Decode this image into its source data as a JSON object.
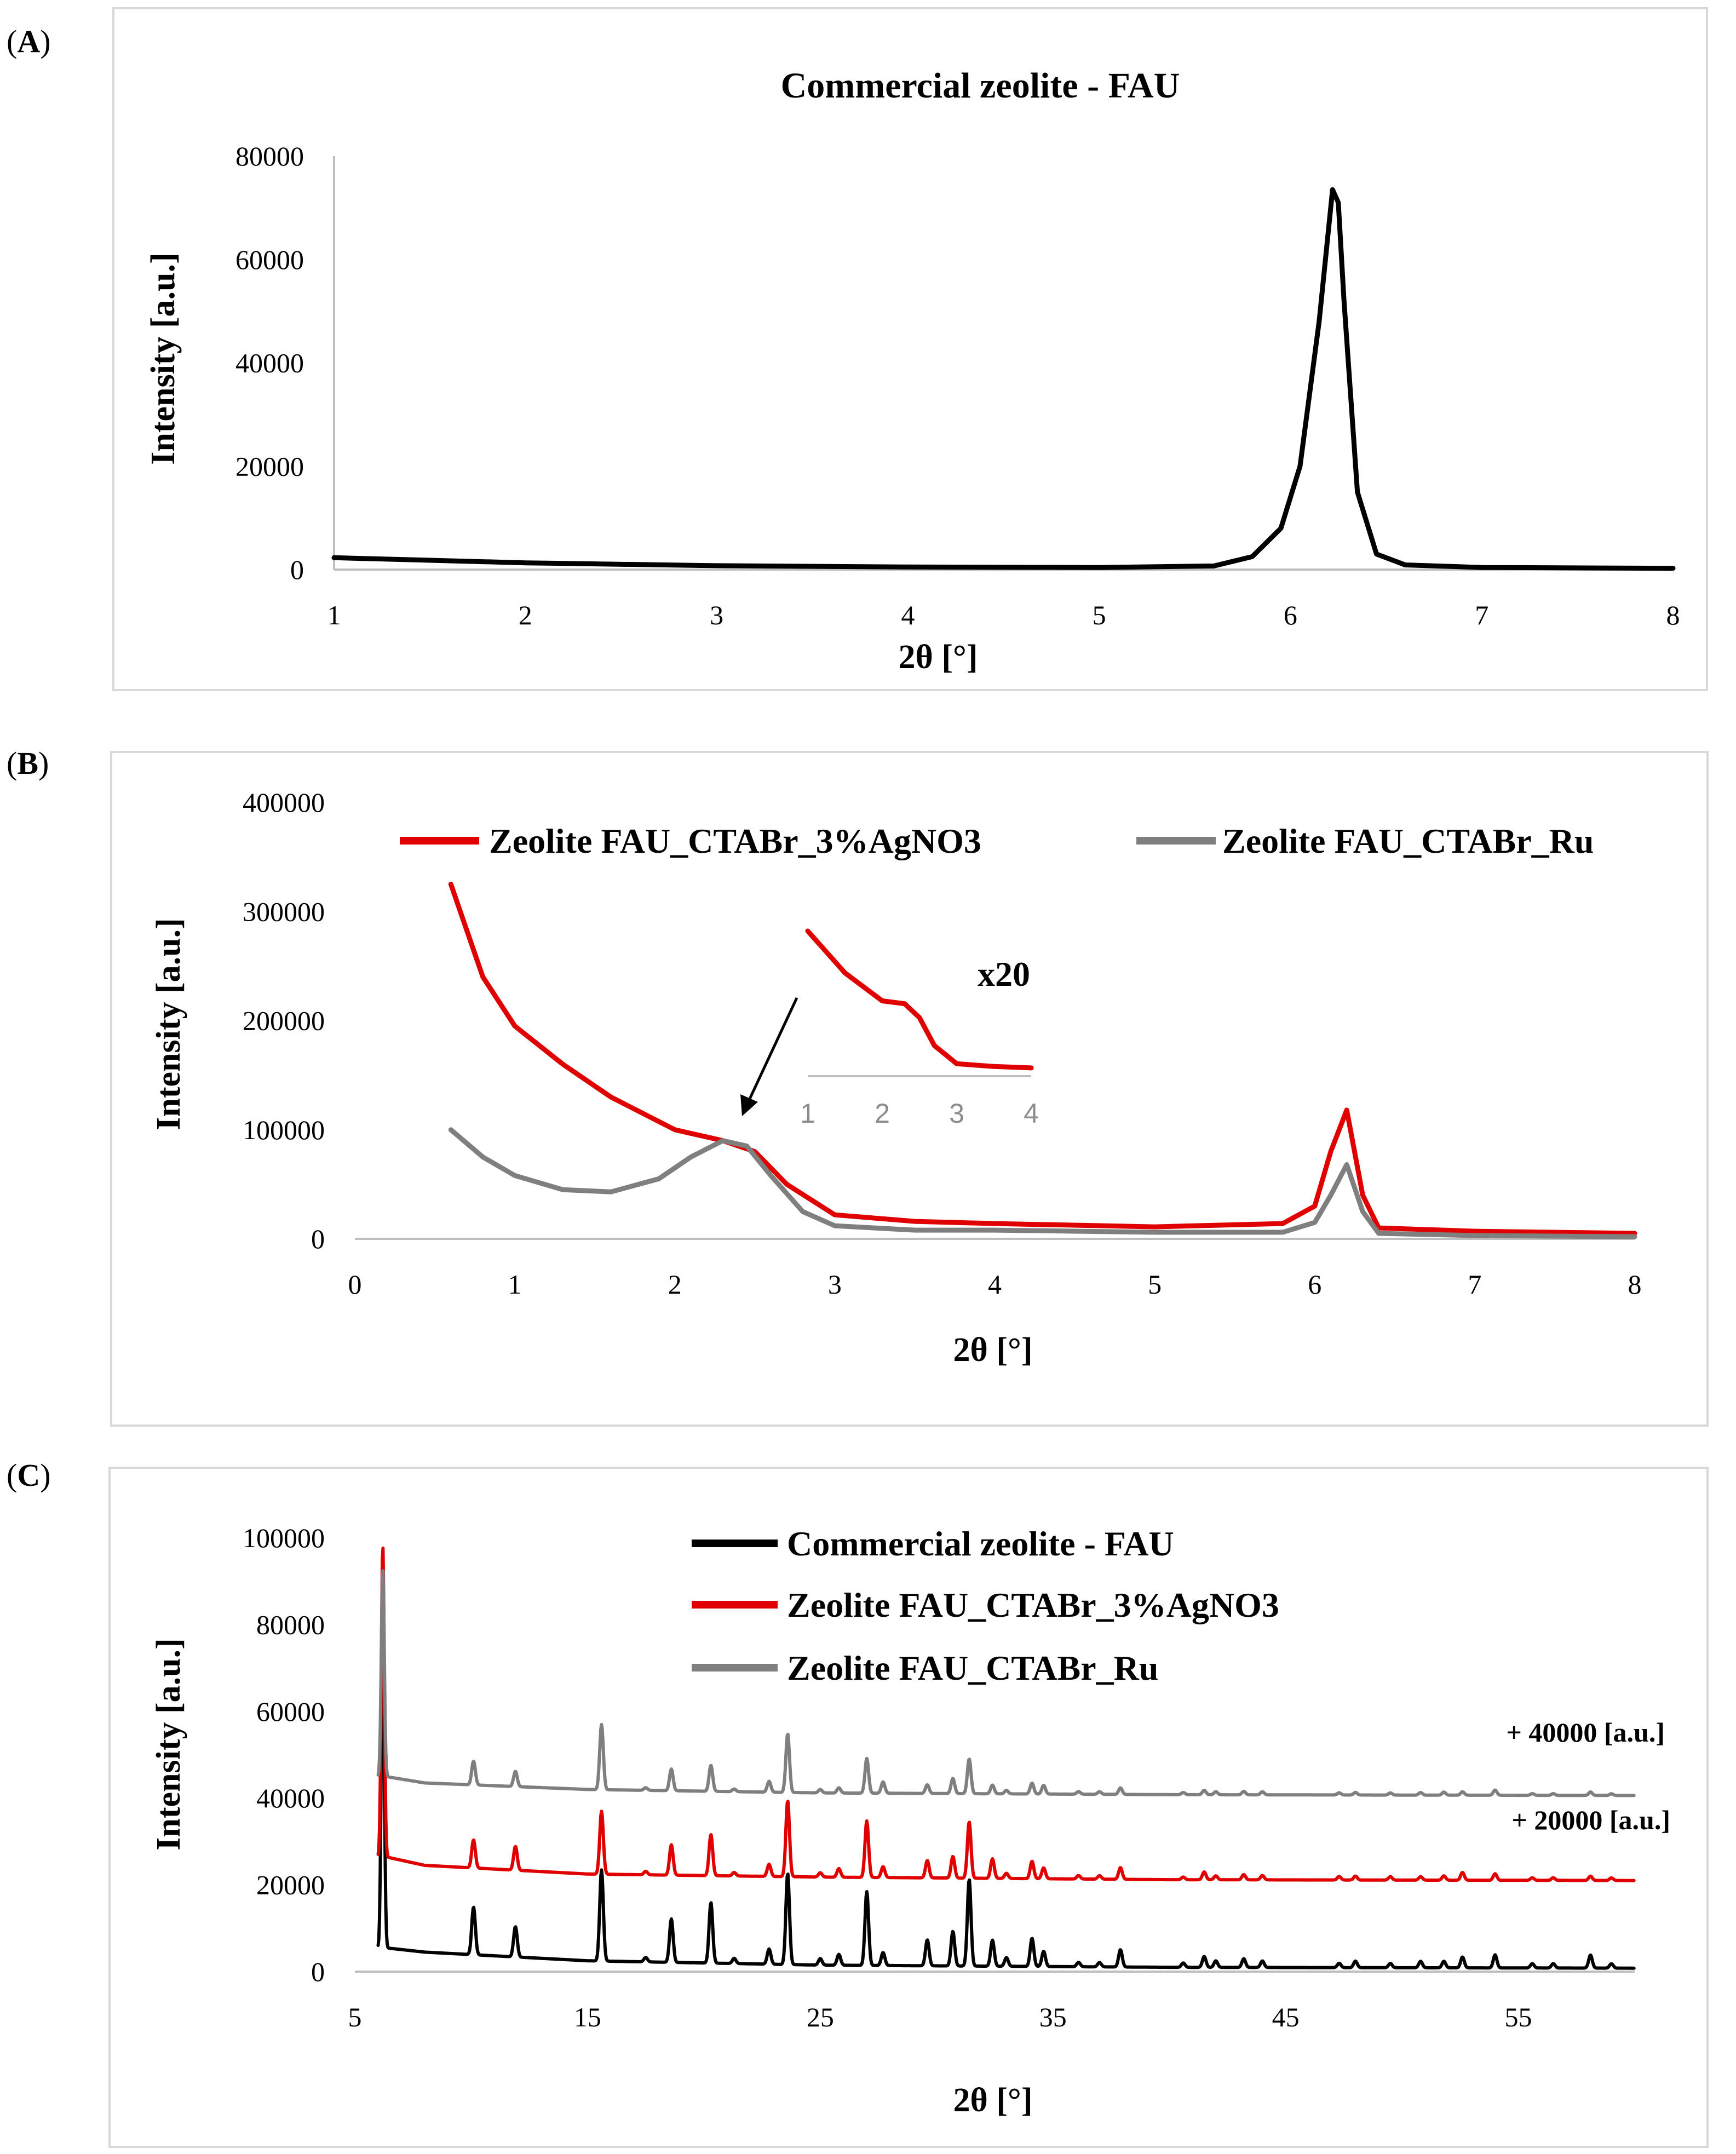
{
  "panels": {
    "A": {
      "letter": "A"
    },
    "B": {
      "letter": "B"
    },
    "C": {
      "letter": "C"
    }
  },
  "colors": {
    "black": "#000000",
    "red": "#e00000",
    "gray": "#7f7f7f",
    "frame": "#d9d9d9",
    "axis": "#bfbfbf"
  },
  "chart_data": [
    {
      "id": "A",
      "type": "line",
      "title": "Commercial zeolite - FAU",
      "xlabel": "2θ [°]",
      "ylabel": "Intensity [a.u.]",
      "xlim": [
        1,
        8
      ],
      "ylim": [
        0,
        80000
      ],
      "xticks": [
        "1",
        "2",
        "3",
        "4",
        "5",
        "6",
        "7",
        "8"
      ],
      "yticks": [
        "0",
        "20000",
        "40000",
        "60000",
        "80000"
      ],
      "series": [
        {
          "name": "Commercial zeolite - FAU",
          "color": "#000000",
          "x": [
            1.0,
            2.0,
            3.0,
            4.0,
            5.0,
            5.6,
            5.8,
            5.95,
            6.05,
            6.15,
            6.22,
            6.25,
            6.28,
            6.35,
            6.45,
            6.6,
            7.0,
            8.0
          ],
          "y": [
            2300,
            1300,
            750,
            500,
            400,
            700,
            2500,
            8000,
            20000,
            48000,
            73500,
            71000,
            52000,
            15000,
            3000,
            900,
            400,
            250
          ]
        }
      ]
    },
    {
      "id": "B",
      "type": "line",
      "xlabel": "2θ [°]",
      "ylabel": "Intensity [a.u.]",
      "xlim": [
        0,
        8
      ],
      "ylim": [
        0,
        400000
      ],
      "xticks": [
        "0",
        "1",
        "2",
        "3",
        "4",
        "5",
        "6",
        "7",
        "8"
      ],
      "yticks": [
        "0",
        "100000",
        "200000",
        "300000",
        "400000"
      ],
      "legend": [
        "Zeolite FAU_CTABr_3%AgNO3",
        "Zeolite FAU_CTABr_Ru"
      ],
      "series": [
        {
          "name": "Zeolite FAU_CTABr_3%AgNO3",
          "color": "#e00000",
          "x": [
            0.6,
            0.8,
            1.0,
            1.3,
            1.6,
            2.0,
            2.3,
            2.5,
            2.7,
            3.0,
            3.5,
            4.0,
            5.0,
            5.8,
            6.0,
            6.1,
            6.2,
            6.3,
            6.4,
            7.0,
            8.0
          ],
          "y": [
            325000,
            240000,
            195000,
            160000,
            130000,
            100000,
            90000,
            80000,
            50000,
            22000,
            16000,
            14000,
            11000,
            14000,
            30000,
            80000,
            118000,
            40000,
            10000,
            7000,
            5000
          ]
        },
        {
          "name": "Zeolite FAU_CTABr_Ru",
          "color": "#7f7f7f",
          "x": [
            0.6,
            0.8,
            1.0,
            1.3,
            1.6,
            1.9,
            2.1,
            2.3,
            2.45,
            2.6,
            2.8,
            3.0,
            3.5,
            4.0,
            5.0,
            5.8,
            6.0,
            6.1,
            6.2,
            6.3,
            6.4,
            7.0,
            8.0
          ],
          "y": [
            100000,
            75000,
            58000,
            45000,
            43000,
            55000,
            75000,
            90000,
            85000,
            58000,
            25000,
            12000,
            8000,
            8000,
            6000,
            6000,
            15000,
            40000,
            68000,
            25000,
            5000,
            3000,
            2000
          ]
        }
      ],
      "inset": {
        "label": "x20",
        "xticks": [
          "1",
          "2",
          "3",
          "4"
        ],
        "x": [
          1.0,
          1.5,
          2.0,
          2.3,
          2.5,
          2.7,
          3.0,
          3.5,
          4.0
        ],
        "y": [
          1.0,
          0.7,
          0.5,
          0.48,
          0.38,
          0.18,
          0.05,
          0.03,
          0.02
        ]
      }
    },
    {
      "id": "C",
      "type": "line",
      "xlabel": "2θ [°]",
      "ylabel": "Intensity [a.u.]",
      "xlim": [
        5,
        60
      ],
      "ylim": [
        0,
        100000
      ],
      "xticks": [
        "5",
        "15",
        "25",
        "35",
        "45",
        "55"
      ],
      "yticks": [
        "0",
        "20000",
        "40000",
        "60000",
        "80000",
        "100000"
      ],
      "legend": [
        "Commercial zeolite - FAU",
        "Zeolite FAU_CTABr_3%AgNO3",
        "Zeolite FAU_CTABr_Ru"
      ],
      "annotations": [
        "+ 40000 [a.u.]",
        "+ 20000 [a.u.]"
      ],
      "peaks_x": [
        6.2,
        10.1,
        11.9,
        15.6,
        17.5,
        18.6,
        20.3,
        21.3,
        22.8,
        23.6,
        25.0,
        25.8,
        27.0,
        27.7,
        29.6,
        30.7,
        31.4,
        32.4,
        33.0,
        34.1,
        34.6,
        36.1,
        37.0,
        37.9,
        40.6,
        41.5,
        42.0,
        43.2,
        44.0,
        47.3,
        48.0,
        49.5,
        50.8,
        51.8,
        52.6,
        54.0,
        55.6,
        56.5,
        58.1,
        59.0
      ],
      "series": [
        {
          "name": "Commercial zeolite - FAU",
          "color": "#000000",
          "offset": 0,
          "baseline": [
            [
              6.3,
              5500
            ],
            [
              8,
              4500
            ],
            [
              15,
              2500
            ],
            [
              25,
              1500
            ],
            [
              40,
              1000
            ],
            [
              60,
              800
            ]
          ],
          "heights": [
            76000,
            11000,
            7000,
            21000,
            1000,
            10000,
            14000,
            1200,
            3500,
            21000,
            1500,
            2500,
            17000,
            3000,
            6000,
            8000,
            20000,
            6000,
            2000,
            6500,
            3500,
            1000,
            1000,
            4000,
            1000,
            2500,
            1500,
            2000,
            1500,
            1000,
            1500,
            1000,
            1500,
            1500,
            2500,
            3000,
            1000,
            1000,
            3000,
            1000
          ]
        },
        {
          "name": "Zeolite FAU_CTABr_3%AgNO3",
          "color": "#e00000",
          "offset": 20000,
          "baseline": [
            [
              6.3,
              6500
            ],
            [
              8,
              4500
            ],
            [
              15,
              2500
            ],
            [
              25,
              1800
            ],
            [
              40,
              1200
            ],
            [
              60,
              1000
            ]
          ],
          "heights": [
            72000,
            6500,
            5500,
            14500,
            800,
            7000,
            9500,
            800,
            2800,
            17500,
            1000,
            2000,
            13000,
            2500,
            4000,
            5000,
            13000,
            4500,
            1200,
            4000,
            2500,
            800,
            800,
            2700,
            600,
            1800,
            900,
            1200,
            1000,
            800,
            900,
            800,
            800,
            1000,
            1800,
            1500,
            600,
            600,
            1000,
            600
          ]
        },
        {
          "name": "Zeolite FAU_CTABr_Ru",
          "color": "#7f7f7f",
          "offset": 40000,
          "baseline": [
            [
              6.3,
              5000
            ],
            [
              8,
              3500
            ],
            [
              15,
              2000
            ],
            [
              25,
              1200
            ],
            [
              40,
              800
            ],
            [
              60,
              600
            ]
          ],
          "heights": [
            48000,
            5500,
            3500,
            15000,
            600,
            5000,
            6000,
            600,
            2500,
            13500,
            800,
            1200,
            8000,
            2600,
            2000,
            3500,
            8000,
            2000,
            800,
            2500,
            2000,
            600,
            600,
            1500,
            500,
            1000,
            700,
            800,
            700,
            500,
            600,
            500,
            600,
            700,
            800,
            1200,
            400,
            400,
            800,
            400
          ]
        }
      ]
    }
  ]
}
